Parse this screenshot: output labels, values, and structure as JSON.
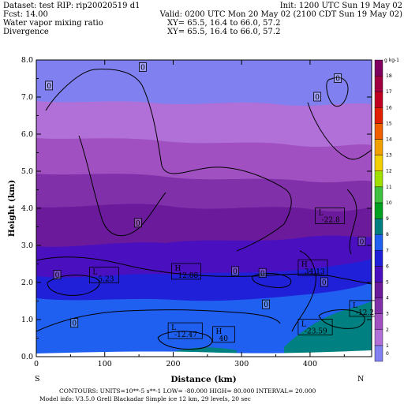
{
  "header": {
    "dataset": "Dataset: test   RIP: rip20020519  d1",
    "init": "Init: 1200 UTC Sun 19 May 02",
    "fcst": "Fcst:     14.00",
    "valid": "Valid: 0200 UTC Mon 20 May 02 (2100 CDT Sun 19 May 02)",
    "field1": "Water vapor mixing ratio",
    "xy1": "XY=   65.5, 16.4  to   66.0, 57.2",
    "field2": "Divergence",
    "xy2": "XY=   65.5, 16.4  to   66.0, 57.2"
  },
  "footer": {
    "line1": "CONTOURS:  UNITS=10**-5 s**-1   LOW=  -80.000       HIGH=  80.000       INTERVAL=   20.000",
    "line2": "Model info: V3.5.0   Grell      Blackadar   Simple ice     12 km,  29 levels,   20 sec"
  },
  "chart_data": {
    "type": "heatmap",
    "xlabel": "Distance (km)",
    "ylabel": "Height (km)",
    "xlim": [
      0,
      490
    ],
    "ylim": [
      0,
      8
    ],
    "xticks": [
      "0",
      "100",
      "200",
      "300",
      "400"
    ],
    "yticks": [
      "0.0",
      "1.0",
      "2.0",
      "3.0",
      "4.0",
      "5.0",
      "6.0",
      "7.0",
      "8.0"
    ],
    "endpoints": {
      "left": "S",
      "right": "N"
    },
    "colorbar": {
      "unit_label": "g kg-1",
      "levels": [
        "0",
        "1",
        "2",
        "3",
        "4",
        "5",
        "6",
        "7",
        "8",
        "9",
        "10",
        "11",
        "12",
        "13",
        "14",
        "15",
        "16",
        "17",
        "18"
      ],
      "colors": [
        "#8080f0",
        "#b070d8",
        "#a050c0",
        "#8030a8",
        "#6a1a9a",
        "#4a10c0",
        "#2020d8",
        "#2060f0",
        "#008080",
        "#00a020",
        "#40c040",
        "#a0e000",
        "#f0d000",
        "#f0a000",
        "#f06000",
        "#e02000",
        "#c00020",
        "#a00040",
        "#800060"
      ]
    },
    "contour_labels": [
      {
        "text": "0",
        "x": 18,
        "y": 7.3
      },
      {
        "text": "0",
        "x": 155,
        "y": 7.8
      },
      {
        "text": "0",
        "x": 440,
        "y": 7.5
      },
      {
        "text": "0",
        "x": 410,
        "y": 7.0
      },
      {
        "text": "0",
        "x": 148,
        "y": 3.6
      },
      {
        "text": "0",
        "x": 475,
        "y": 3.1
      },
      {
        "text": "0",
        "x": 420,
        "y": 2.0
      },
      {
        "text": "0",
        "x": 30,
        "y": 2.2
      },
      {
        "text": "0",
        "x": 335,
        "y": 1.4
      },
      {
        "text": "0",
        "x": 55,
        "y": 0.9
      },
      {
        "text": "L",
        "sub": "-22.8",
        "x": 410,
        "y": 3.8
      },
      {
        "text": "L",
        "sub": "-5.23",
        "x": 80,
        "y": 2.2
      },
      {
        "text": "L",
        "sub": "-12.2",
        "x": 460,
        "y": 1.3
      },
      {
        "text": "L",
        "sub": "-12.47",
        "x": 195,
        "y": 0.7
      },
      {
        "text": "L",
        "sub": "-23.59",
        "x": 385,
        "y": 0.8
      },
      {
        "text": "H",
        "sub": "12.88",
        "x": 200,
        "y": 2.3
      },
      {
        "text": "H",
        "sub": "34.13",
        "x": 385,
        "y": 2.4
      },
      {
        "text": "H",
        "sub": "40",
        "x": 260,
        "y": 0.6
      },
      {
        "text": "0",
        "x": 290,
        "y": 2.3
      },
      {
        "text": "0",
        "x": 330,
        "y": 2.25
      }
    ]
  }
}
